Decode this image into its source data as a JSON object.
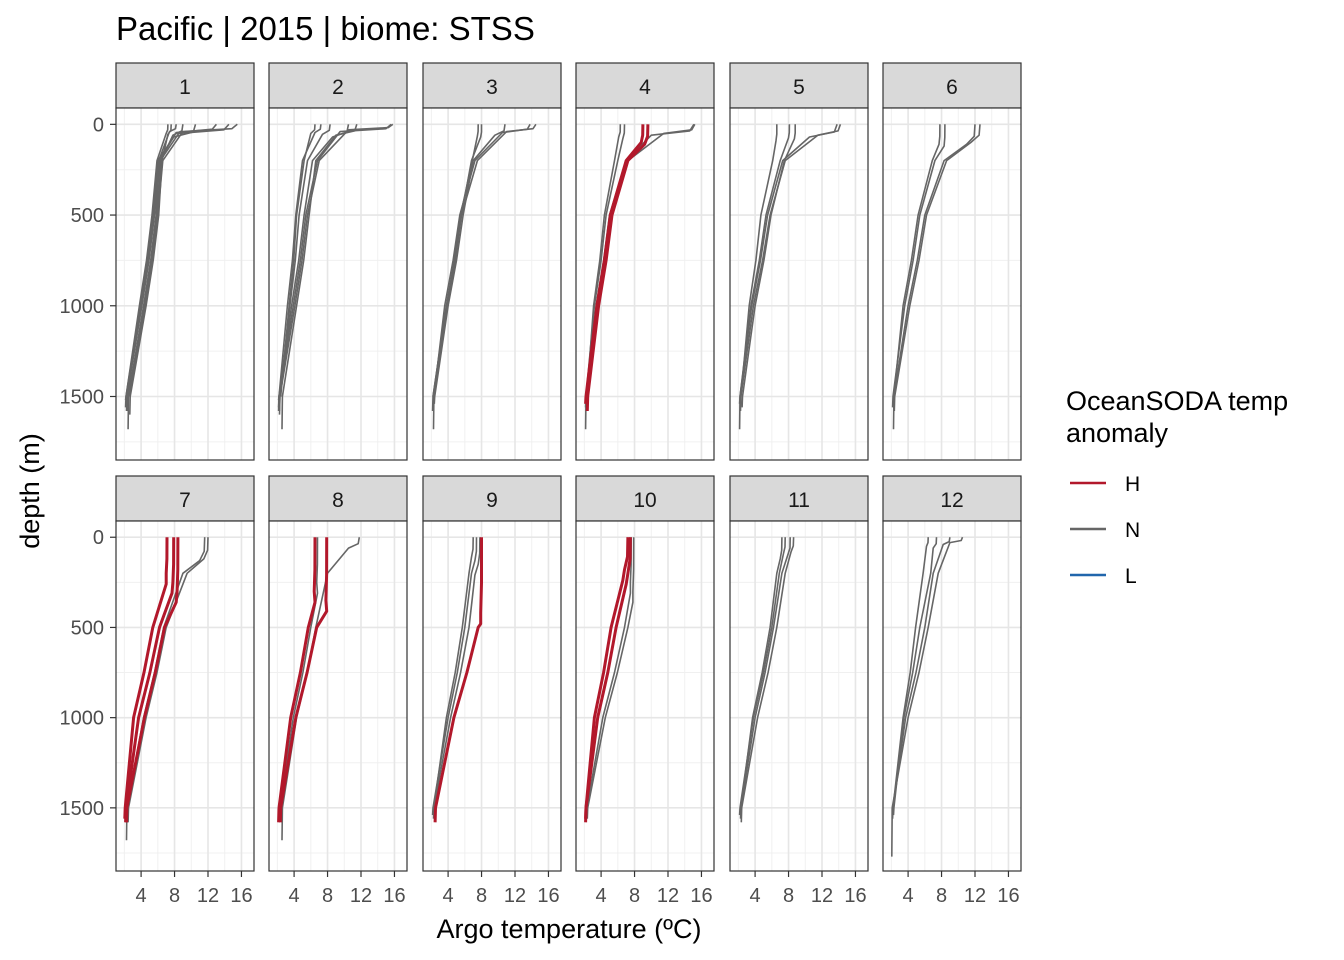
{
  "chart_data": {
    "type": "line",
    "title": "Pacific | 2015 | biome: STSS",
    "xlabel": "Argo temperature (ºC)",
    "ylabel": "depth (m)",
    "xlim": [
      1,
      17.5
    ],
    "ylim": [
      1850,
      -90
    ],
    "x_ticks": [
      4,
      8,
      12,
      16
    ],
    "x_tick_labels": [
      "4",
      "8",
      "12",
      "16"
    ],
    "y_ticks": [
      0,
      500,
      1000,
      1500
    ],
    "y_tick_labels": [
      "0",
      "500",
      "1000",
      "1500"
    ],
    "grid": true,
    "facet_by": "month",
    "legend": {
      "title": [
        "OceanSODA temp",
        "anomaly"
      ],
      "position": "right",
      "items": [
        {
          "key": "H",
          "label": "H",
          "color": "#b2182b"
        },
        {
          "key": "N",
          "label": "N",
          "color": "#666666"
        },
        {
          "key": "L",
          "label": "L",
          "color": "#2166ac"
        }
      ]
    },
    "panels": [
      {
        "label": "1",
        "profiles": [
          {
            "a": "N",
            "surf": 15.5,
            "tc": 9.0,
            "mld": 40,
            "d200": 6.6,
            "d500": 6.0,
            "d1000": 4.5,
            "d1500": 2.4,
            "max": 1580
          },
          {
            "a": "N",
            "surf": 14.5,
            "tc": 8.5,
            "mld": 50,
            "d200": 6.3,
            "d500": 5.6,
            "d1000": 4.1,
            "d1500": 2.3,
            "max": 1580
          },
          {
            "a": "N",
            "surf": 13.0,
            "tc": 8.2,
            "mld": 45,
            "d200": 6.2,
            "d500": 5.8,
            "d1000": 4.3,
            "d1500": 2.5,
            "max": 1680
          },
          {
            "a": "N",
            "surf": 10.5,
            "tc": 7.9,
            "mld": 70,
            "d200": 6.0,
            "d500": 5.4,
            "d1000": 3.9,
            "d1500": 2.2,
            "max": 1560
          },
          {
            "a": "N",
            "surf": 9.0,
            "tc": 7.8,
            "mld": 60,
            "d200": 6.4,
            "d500": 5.9,
            "d1000": 4.4,
            "d1500": 2.6,
            "max": 1500
          },
          {
            "a": "N",
            "surf": 8.2,
            "tc": 7.4,
            "mld": 40,
            "d200": 6.1,
            "d500": 5.5,
            "d1000": 4.0,
            "d1500": 2.3,
            "max": 1540
          },
          {
            "a": "N",
            "surf": 7.6,
            "tc": 7.2,
            "mld": 55,
            "d200": 6.5,
            "d500": 6.1,
            "d1000": 4.6,
            "d1500": 2.7,
            "max": 1600
          },
          {
            "a": "N",
            "surf": 7.2,
            "tc": 7.0,
            "mld": 50,
            "d200": 5.9,
            "d500": 5.3,
            "d1000": 3.8,
            "d1500": 2.2,
            "max": 1520
          }
        ]
      },
      {
        "label": "2",
        "profiles": [
          {
            "a": "N",
            "surf": 15.8,
            "tc": 10.5,
            "mld": 30,
            "d200": 7.0,
            "d500": 5.6,
            "d1000": 4.1,
            "d1500": 2.3,
            "max": 1580
          },
          {
            "a": "N",
            "surf": 15.6,
            "tc": 9.5,
            "mld": 40,
            "d200": 6.8,
            "d500": 5.4,
            "d1000": 3.9,
            "d1500": 2.2,
            "max": 1560
          },
          {
            "a": "N",
            "surf": 11.5,
            "tc": 9.0,
            "mld": 60,
            "d200": 6.6,
            "d500": 5.8,
            "d1000": 4.3,
            "d1500": 2.6,
            "max": 1680
          },
          {
            "a": "N",
            "surf": 10.5,
            "tc": 8.6,
            "mld": 70,
            "d200": 6.2,
            "d500": 5.2,
            "d1000": 3.7,
            "d1500": 2.2,
            "max": 1520
          },
          {
            "a": "N",
            "surf": 8.3,
            "tc": 7.4,
            "mld": 55,
            "d200": 5.6,
            "d500": 4.6,
            "d1000": 3.5,
            "d1500": 2.3,
            "max": 1600
          },
          {
            "a": "N",
            "surf": 7.2,
            "tc": 6.5,
            "mld": 45,
            "d200": 5.0,
            "d500": 4.2,
            "d1000": 3.2,
            "d1500": 2.2,
            "max": 1580
          },
          {
            "a": "N",
            "surf": 6.5,
            "tc": 6.0,
            "mld": 50,
            "d200": 5.2,
            "d500": 4.3,
            "d1000": 3.4,
            "d1500": 2.4,
            "max": 1500
          }
        ]
      },
      {
        "label": "3",
        "profiles": [
          {
            "a": "N",
            "surf": 14.5,
            "tc": 11.0,
            "mld": 40,
            "d200": 7.5,
            "d500": 5.6,
            "d1000": 3.8,
            "d1500": 2.2,
            "max": 1580
          },
          {
            "a": "N",
            "surf": 13.8,
            "tc": 10.5,
            "mld": 45,
            "d200": 7.2,
            "d500": 5.4,
            "d1000": 3.6,
            "d1500": 2.3,
            "max": 1680
          },
          {
            "a": "N",
            "surf": 10.8,
            "tc": 9.6,
            "mld": 60,
            "d200": 7.0,
            "d500": 5.8,
            "d1000": 4.0,
            "d1500": 2.4,
            "max": 1540
          },
          {
            "a": "N",
            "surf": 8.0,
            "tc": 7.9,
            "mld": 70,
            "d200": 6.8,
            "d500": 5.6,
            "d1000": 3.9,
            "d1500": 2.3,
            "max": 1560
          },
          {
            "a": "N",
            "surf": 7.6,
            "tc": 7.5,
            "mld": 65,
            "d200": 6.9,
            "d500": 5.5,
            "d1000": 3.8,
            "d1500": 2.2,
            "max": 1500
          }
        ]
      },
      {
        "label": "4",
        "profiles": [
          {
            "a": "N",
            "surf": 15.2,
            "tc": 11.5,
            "mld": 50,
            "d200": 7.2,
            "d500": 5.2,
            "d1000": 3.6,
            "d1500": 2.3,
            "max": 1580
          },
          {
            "a": "N",
            "surf": 15.1,
            "tc": 10.0,
            "mld": 60,
            "d200": 7.0,
            "d500": 5.0,
            "d1000": 3.4,
            "d1500": 2.2,
            "max": 1560
          },
          {
            "a": "H",
            "surf": 9.6,
            "tc": 9.2,
            "mld": 110,
            "d200": 7.2,
            "d500": 5.3,
            "d1000": 3.7,
            "d1500": 2.4,
            "max": 1580
          },
          {
            "a": "H",
            "surf": 9.0,
            "tc": 8.8,
            "mld": 100,
            "d200": 7.0,
            "d500": 5.1,
            "d1000": 3.5,
            "d1500": 2.2,
            "max": 1540
          },
          {
            "a": "N",
            "surf": 6.8,
            "tc": 6.6,
            "mld": 80,
            "d200": 6.0,
            "d500": 4.6,
            "d1000": 3.2,
            "d1500": 2.2,
            "max": 1680
          },
          {
            "a": "N",
            "surf": 6.3,
            "tc": 6.1,
            "mld": 70,
            "d200": 5.6,
            "d500": 4.4,
            "d1000": 3.1,
            "d1500": 2.3,
            "max": 1500
          }
        ]
      },
      {
        "label": "5",
        "profiles": [
          {
            "a": "N",
            "surf": 14.2,
            "tc": 11.5,
            "mld": 60,
            "d200": 7.6,
            "d500": 5.8,
            "d1000": 3.8,
            "d1500": 2.3,
            "max": 1580
          },
          {
            "a": "N",
            "surf": 13.8,
            "tc": 10.5,
            "mld": 70,
            "d200": 7.3,
            "d500": 5.5,
            "d1000": 3.6,
            "d1500": 2.2,
            "max": 1680
          },
          {
            "a": "N",
            "surf": 8.8,
            "tc": 8.7,
            "mld": 80,
            "d200": 7.5,
            "d500": 5.9,
            "d1000": 4.0,
            "d1500": 2.5,
            "max": 1560
          },
          {
            "a": "N",
            "surf": 8.1,
            "tc": 8.0,
            "mld": 75,
            "d200": 7.0,
            "d500": 5.3,
            "d1000": 3.5,
            "d1500": 2.2,
            "max": 1540
          },
          {
            "a": "N",
            "surf": 6.6,
            "tc": 6.5,
            "mld": 90,
            "d200": 6.1,
            "d500": 4.7,
            "d1000": 3.3,
            "d1500": 2.3,
            "max": 1500
          }
        ]
      },
      {
        "label": "6",
        "profiles": [
          {
            "a": "N",
            "surf": 12.6,
            "tc": 11.5,
            "mld": 100,
            "d200": 8.6,
            "d500": 6.2,
            "d1000": 4.2,
            "d1500": 2.4,
            "max": 1580
          },
          {
            "a": "N",
            "surf": 12.0,
            "tc": 11.0,
            "mld": 110,
            "d200": 8.3,
            "d500": 6.0,
            "d1000": 4.0,
            "d1500": 2.3,
            "max": 1680
          },
          {
            "a": "N",
            "surf": 8.4,
            "tc": 8.3,
            "mld": 120,
            "d200": 7.2,
            "d500": 5.4,
            "d1000": 3.6,
            "d1500": 2.2,
            "max": 1560
          },
          {
            "a": "N",
            "surf": 7.8,
            "tc": 7.7,
            "mld": 110,
            "d200": 6.9,
            "d500": 5.2,
            "d1000": 3.4,
            "d1500": 2.3,
            "max": 1540
          }
        ]
      },
      {
        "label": "7",
        "profiles": [
          {
            "a": "N",
            "surf": 12.0,
            "tc": 11.5,
            "mld": 120,
            "d200": 9.5,
            "d500": 7.0,
            "d1000": 4.6,
            "d1500": 2.5,
            "max": 1580
          },
          {
            "a": "N",
            "surf": 11.6,
            "tc": 11.0,
            "mld": 130,
            "d200": 9.0,
            "d500": 6.7,
            "d1000": 4.3,
            "d1500": 2.3,
            "max": 1680
          },
          {
            "a": "H",
            "surf": 8.4,
            "tc": 8.3,
            "mld": 300,
            "d200": 8.2,
            "d500": 6.8,
            "d1000": 4.4,
            "d1500": 2.3,
            "max": 1580
          },
          {
            "a": "H",
            "surf": 7.9,
            "tc": 7.8,
            "mld": 250,
            "d200": 7.7,
            "d500": 6.2,
            "d1000": 3.7,
            "d1500": 2.2,
            "max": 1580
          },
          {
            "a": "H",
            "surf": 7.1,
            "tc": 7.0,
            "mld": 200,
            "d200": 7.0,
            "d500": 5.4,
            "d1000": 3.1,
            "d1500": 2.1,
            "max": 1560
          }
        ]
      },
      {
        "label": "8",
        "profiles": [
          {
            "a": "N",
            "surf": 11.8,
            "tc": 10.5,
            "mld": 60,
            "d200": 8.0,
            "d500": 6.6,
            "d1000": 4.3,
            "d1500": 2.6,
            "max": 1680
          },
          {
            "a": "N",
            "surf": 6.8,
            "tc": 6.7,
            "mld": 250,
            "d200": 6.8,
            "d500": 6.0,
            "d1000": 3.9,
            "d1500": 2.3,
            "max": 1560
          },
          {
            "a": "H",
            "surf": 7.9,
            "tc": 7.8,
            "mld": 350,
            "d200": 7.9,
            "d500": 6.7,
            "d1000": 4.2,
            "d1500": 2.4,
            "max": 1580
          },
          {
            "a": "H",
            "surf": 6.5,
            "tc": 6.4,
            "mld": 300,
            "d200": 6.5,
            "d500": 5.7,
            "d1000": 3.6,
            "d1500": 2.2,
            "max": 1580
          }
        ]
      },
      {
        "label": "9",
        "profiles": [
          {
            "a": "H",
            "surf": 8.0,
            "tc": 7.9,
            "mld": 420,
            "d200": 7.9,
            "d500": 7.6,
            "d1000": 4.7,
            "d1500": 2.5,
            "max": 1580
          },
          {
            "a": "N",
            "surf": 7.8,
            "tc": 7.6,
            "mld": 150,
            "d200": 7.2,
            "d500": 6.5,
            "d1000": 4.3,
            "d1500": 2.3,
            "max": 1560
          },
          {
            "a": "N",
            "surf": 7.4,
            "tc": 7.2,
            "mld": 130,
            "d200": 6.8,
            "d500": 6.0,
            "d1000": 4.0,
            "d1500": 2.2,
            "max": 1540
          },
          {
            "a": "N",
            "surf": 7.0,
            "tc": 6.8,
            "mld": 110,
            "d200": 6.5,
            "d500": 5.7,
            "d1000": 3.8,
            "d1500": 2.3,
            "max": 1500
          }
        ]
      },
      {
        "label": "10",
        "profiles": [
          {
            "a": "N",
            "surf": 7.9,
            "tc": 7.8,
            "mld": 300,
            "d200": 7.8,
            "d500": 7.2,
            "d1000": 4.5,
            "d1500": 2.4,
            "max": 1560
          },
          {
            "a": "N",
            "surf": 7.6,
            "tc": 7.5,
            "mld": 250,
            "d200": 7.5,
            "d500": 6.8,
            "d1000": 4.2,
            "d1500": 2.3,
            "max": 1500
          },
          {
            "a": "H",
            "surf": 7.5,
            "tc": 7.2,
            "mld": 200,
            "d200": 7.0,
            "d500": 5.8,
            "d1000": 3.6,
            "d1500": 2.2,
            "max": 1580
          },
          {
            "a": "H",
            "surf": 7.2,
            "tc": 6.8,
            "mld": 180,
            "d200": 6.6,
            "d500": 5.2,
            "d1000": 3.2,
            "d1500": 2.2,
            "max": 1560
          }
        ]
      },
      {
        "label": "11",
        "profiles": [
          {
            "a": "N",
            "surf": 8.6,
            "tc": 8.3,
            "mld": 80,
            "d200": 7.6,
            "d500": 6.6,
            "d1000": 4.3,
            "d1500": 2.4,
            "max": 1580
          },
          {
            "a": "N",
            "surf": 8.2,
            "tc": 7.9,
            "mld": 100,
            "d200": 7.2,
            "d500": 6.2,
            "d1000": 4.0,
            "d1500": 2.3,
            "max": 1560
          },
          {
            "a": "N",
            "surf": 7.6,
            "tc": 7.4,
            "mld": 90,
            "d200": 6.9,
            "d500": 6.0,
            "d1000": 3.8,
            "d1500": 2.2,
            "max": 1540
          },
          {
            "a": "N",
            "surf": 7.2,
            "tc": 7.0,
            "mld": 120,
            "d200": 6.6,
            "d500": 5.8,
            "d1000": 3.7,
            "d1500": 2.3,
            "max": 1520
          }
        ]
      },
      {
        "label": "12",
        "profiles": [
          {
            "a": "N",
            "surf": 10.5,
            "tc": 9.0,
            "mld": 30,
            "d200": 7.6,
            "d500": 6.4,
            "d1000": 4.0,
            "d1500": 2.1,
            "max": 1770
          },
          {
            "a": "N",
            "surf": 9.0,
            "tc": 8.2,
            "mld": 40,
            "d200": 7.0,
            "d500": 6.0,
            "d1000": 3.7,
            "d1500": 2.2,
            "max": 1560
          },
          {
            "a": "N",
            "surf": 7.4,
            "tc": 7.0,
            "mld": 60,
            "d200": 6.7,
            "d500": 5.4,
            "d1000": 3.5,
            "d1500": 2.3,
            "max": 1540
          },
          {
            "a": "N",
            "surf": 6.4,
            "tc": 6.2,
            "mld": 50,
            "d200": 5.8,
            "d500": 4.9,
            "d1000": 3.4,
            "d1500": 2.2,
            "max": 1520
          }
        ]
      }
    ]
  }
}
